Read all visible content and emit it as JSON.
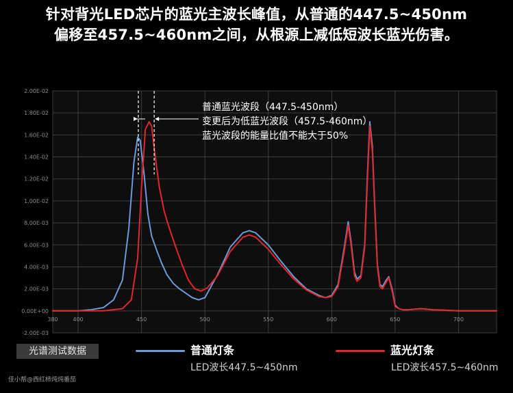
{
  "headline": {
    "line1": "针对背光LED芯片的蓝光主波长峰值，从普通的447.5~450nm",
    "line2": "偏移至457.5~460nm之间，从根源上减低短波长蓝光伤害。"
  },
  "chart_data": {
    "type": "line",
    "xlim": [
      380,
      730
    ],
    "ylim": [
      -0.002,
      0.02
    ],
    "x_ticks": [
      "380",
      "400",
      "450",
      "500",
      "550",
      "600",
      "650",
      "700"
    ],
    "x_tick_values": [
      380,
      400,
      450,
      500,
      550,
      600,
      650,
      700
    ],
    "y_ticks": [
      "2.00E-02",
      "1.80E-02",
      "1.60E-02",
      "1.40E-02",
      "1.20E-02",
      "1.00E-02",
      "8.00E-03",
      "6.00E-03",
      "4.00E-03",
      "2.00E-03",
      "0.00E+00",
      "-2.00E-03"
    ],
    "y_tick_values": [
      0.02,
      0.018,
      0.016,
      0.014,
      0.012,
      0.01,
      0.008,
      0.006,
      0.004,
      0.002,
      0,
      -0.002
    ],
    "grid": true,
    "series": [
      {
        "name": "普通灯条",
        "color": "#6b9bd8",
        "x": [
          380,
          400,
          410,
          420,
          428,
          435,
          440,
          444,
          447,
          449,
          452,
          455,
          458,
          462,
          466,
          470,
          475,
          480,
          485,
          490,
          495,
          500,
          510,
          520,
          530,
          535,
          540,
          550,
          560,
          570,
          580,
          590,
          595,
          600,
          605,
          610,
          613,
          615,
          618,
          620,
          623,
          626,
          628,
          630,
          632,
          634,
          636,
          638,
          640,
          643,
          645,
          648,
          650,
          653,
          656,
          660,
          670,
          680,
          700,
          730
        ],
        "y": [
          0,
          0,
          0.0001,
          0.0003,
          0.001,
          0.0028,
          0.0075,
          0.0135,
          0.0158,
          0.0155,
          0.0125,
          0.0088,
          0.0068,
          0.0055,
          0.0043,
          0.0033,
          0.0025,
          0.002,
          0.0016,
          0.0012,
          0.001,
          0.0012,
          0.0033,
          0.0058,
          0.0071,
          0.0073,
          0.0071,
          0.006,
          0.0045,
          0.0031,
          0.002,
          0.0014,
          0.0012,
          0.0014,
          0.0024,
          0.0058,
          0.0081,
          0.0065,
          0.0035,
          0.0029,
          0.0032,
          0.006,
          0.012,
          0.0172,
          0.015,
          0.0093,
          0.0042,
          0.0024,
          0.0022,
          0.0028,
          0.0031,
          0.0018,
          0.0005,
          0.0002,
          0.0001,
          0.0001,
          0.0002,
          0.0001,
          0,
          0
        ]
      },
      {
        "name": "蓝光灯条",
        "color": "#e3262b",
        "x": [
          380,
          400,
          420,
          435,
          442,
          447,
          450,
          453,
          456,
          458,
          460,
          464,
          468,
          472,
          477,
          482,
          487,
          492,
          497,
          502,
          510,
          520,
          530,
          535,
          540,
          550,
          560,
          570,
          580,
          590,
          595,
          600,
          605,
          610,
          613,
          615,
          618,
          620,
          623,
          626,
          628,
          630,
          632,
          634,
          636,
          638,
          640,
          643,
          645,
          648,
          650,
          653,
          656,
          660,
          670,
          680,
          700,
          730
        ],
        "y": [
          0,
          0,
          0,
          0.0002,
          0.001,
          0.0048,
          0.0112,
          0.0165,
          0.0172,
          0.0168,
          0.0148,
          0.0113,
          0.009,
          0.0075,
          0.0058,
          0.0042,
          0.0028,
          0.002,
          0.0018,
          0.0021,
          0.0032,
          0.0054,
          0.0067,
          0.0069,
          0.0067,
          0.0056,
          0.0042,
          0.0029,
          0.0019,
          0.0013,
          0.0012,
          0.0013,
          0.0022,
          0.0055,
          0.0078,
          0.0062,
          0.0032,
          0.0027,
          0.003,
          0.0058,
          0.0115,
          0.0168,
          0.0145,
          0.009,
          0.004,
          0.0022,
          0.002,
          0.0026,
          0.003,
          0.0016,
          0.0004,
          0.0002,
          0.0001,
          0.0001,
          0.0002,
          0.0001,
          0,
          0
        ]
      }
    ],
    "annotation": {
      "line1": "普通蓝光波段（447.5-450nm）",
      "line2": "变更后为低蓝光波段（457.5-460nm）",
      "line3": "蓝光波段的能量比值不能大于50%",
      "normal_band": [
        447.5,
        450
      ],
      "low_blue_band": [
        457.5,
        460
      ]
    }
  },
  "legend": {
    "badge": "光谱测试数据",
    "normal_name": "普通灯条",
    "normal_sub": "LED波长447.5~450nm",
    "normal_color": "#6b9bd8",
    "blue_name": "蓝光灯条",
    "blue_sub": "LED波长457.5~460nm",
    "blue_color": "#e3262b"
  },
  "watermark": "佳小帮@西红柿炖炖番茄"
}
